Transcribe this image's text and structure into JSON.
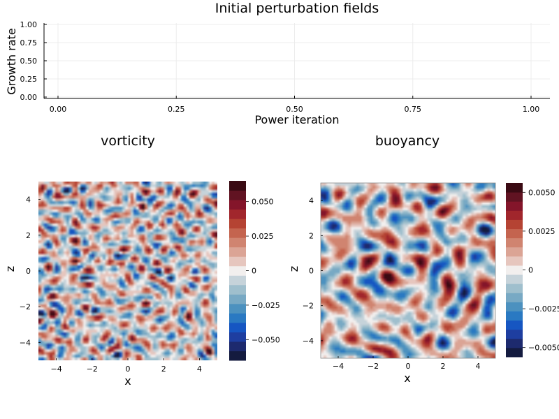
{
  "chart_data": [
    {
      "type": "line",
      "title": "Initial perturbation fields",
      "xlabel": "Power iteration",
      "ylabel": "Growth rate",
      "xlim": [
        0,
        1
      ],
      "ylim": [
        0,
        1
      ],
      "grid": true,
      "xticks": [
        0.0,
        0.25,
        0.5,
        0.75,
        1.0
      ],
      "xtick_labels": [
        "0.00",
        "0.25",
        "0.50",
        "0.75",
        "1.00"
      ],
      "yticks": [
        0.0,
        0.25,
        0.5,
        0.75,
        1.0
      ],
      "ytick_labels": [
        "0.00",
        "0.25",
        "0.50",
        "0.75",
        "1.00"
      ],
      "series": []
    },
    {
      "type": "heatmap",
      "title": "vorticity",
      "xlabel": "x",
      "ylabel": "z",
      "xlim": [
        -5,
        5
      ],
      "ylim": [
        -5,
        5
      ],
      "xticks": [
        -4,
        -2,
        0,
        2,
        4
      ],
      "xtick_labels": [
        "−4",
        "−2",
        "0",
        "2",
        "4"
      ],
      "yticks": [
        -4,
        -2,
        0,
        2,
        4
      ],
      "ytick_labels": [
        "−4",
        "−2",
        "0",
        "2",
        "4"
      ],
      "colorbar": {
        "range": [
          -0.065,
          0.065
        ],
        "ticks": [
          -0.05,
          -0.025,
          0,
          0.025,
          0.05
        ],
        "tick_labels": [
          "−0.050",
          "−0.025",
          "0",
          "0.025",
          "0.050"
        ]
      },
      "field": "random small-scale noise"
    },
    {
      "type": "heatmap",
      "title": "buoyancy",
      "xlabel": "x",
      "ylabel": "z",
      "xlim": [
        -5,
        5
      ],
      "ylim": [
        -5,
        5
      ],
      "xticks": [
        -4,
        -2,
        0,
        2,
        4
      ],
      "xtick_labels": [
        "−4",
        "−2",
        "0",
        "2",
        "4"
      ],
      "yticks": [
        -4,
        -2,
        0,
        2,
        4
      ],
      "ytick_labels": [
        "−4",
        "−2",
        "0",
        "2",
        "4"
      ],
      "colorbar": {
        "range": [
          -0.0056,
          0.0056
        ],
        "ticks": [
          -0.005,
          -0.0025,
          0,
          0.0025,
          0.005
        ],
        "tick_labels": [
          "−0.0050",
          "−0.0025",
          "0",
          "0.0025",
          "0.0050"
        ]
      },
      "field": "random smoother noise"
    }
  ],
  "colors": {
    "balance": [
      "#141b3f",
      "#1d2a6e",
      "#1e3ea0",
      "#1656c2",
      "#2a79c2",
      "#4c91bf",
      "#78a9c4",
      "#9fbfcd",
      "#c6d3da",
      "#f2efee",
      "#e6c6be",
      "#dba495",
      "#d08470",
      "#c4644f",
      "#b54333",
      "#a1262c",
      "#84152a",
      "#611322",
      "#3a0a13"
    ],
    "axis": "#000000",
    "grid": "#ececec"
  }
}
